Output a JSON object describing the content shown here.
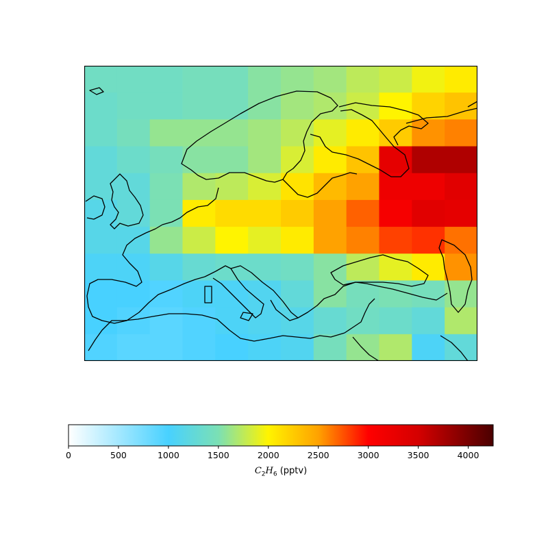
{
  "chart_data": {
    "type": "heatmap",
    "title": "",
    "colorbar": {
      "label_species": "C",
      "label_sub1": "2",
      "label_h": "H",
      "label_sub2": "6",
      "label_units": " (pptv)",
      "ticks": [
        0,
        500,
        1000,
        1500,
        2000,
        2500,
        3000,
        3500,
        4000
      ],
      "vmin": 0,
      "vmax": 4250,
      "colormap": "white-to-jet"
    },
    "grid": {
      "rows": 11,
      "cols": 12,
      "values": [
        [
          1400,
          1400,
          1400,
          1450,
          1450,
          1550,
          1600,
          1650,
          1750,
          1800,
          1950,
          2050
        ],
        [
          1350,
          1400,
          1400,
          1450,
          1450,
          1550,
          1650,
          1700,
          1800,
          2000,
          2200,
          2300
        ],
        [
          1350,
          1450,
          1600,
          1600,
          1600,
          1650,
          1750,
          1900,
          2050,
          2250,
          2550,
          2600
        ],
        [
          1250,
          1350,
          1450,
          1550,
          1550,
          1650,
          1850,
          2050,
          2300,
          3300,
          3700,
          3700
        ],
        [
          1250,
          1250,
          1500,
          1700,
          1750,
          1850,
          2100,
          2350,
          2500,
          3200,
          3200,
          3350
        ],
        [
          1150,
          1250,
          1500,
          2050,
          2150,
          2150,
          2250,
          2500,
          2700,
          3100,
          3350,
          3300
        ],
        [
          1150,
          1150,
          1600,
          1800,
          2000,
          1900,
          2050,
          2500,
          2600,
          2800,
          2850,
          2650
        ],
        [
          1050,
          1050,
          1150,
          1300,
          1350,
          1350,
          1400,
          1550,
          1750,
          1900,
          2050,
          2550
        ],
        [
          1000,
          1000,
          950,
          1050,
          1050,
          1100,
          1250,
          1550,
          1450,
          1500,
          1450,
          1600
        ],
        [
          1000,
          950,
          900,
          950,
          1050,
          1100,
          1150,
          1300,
          1400,
          1350,
          1250,
          1700
        ],
        [
          950,
          900,
          900,
          950,
          1000,
          1050,
          1100,
          1450,
          1600,
          1700,
          1050,
          1250
        ]
      ]
    }
  }
}
